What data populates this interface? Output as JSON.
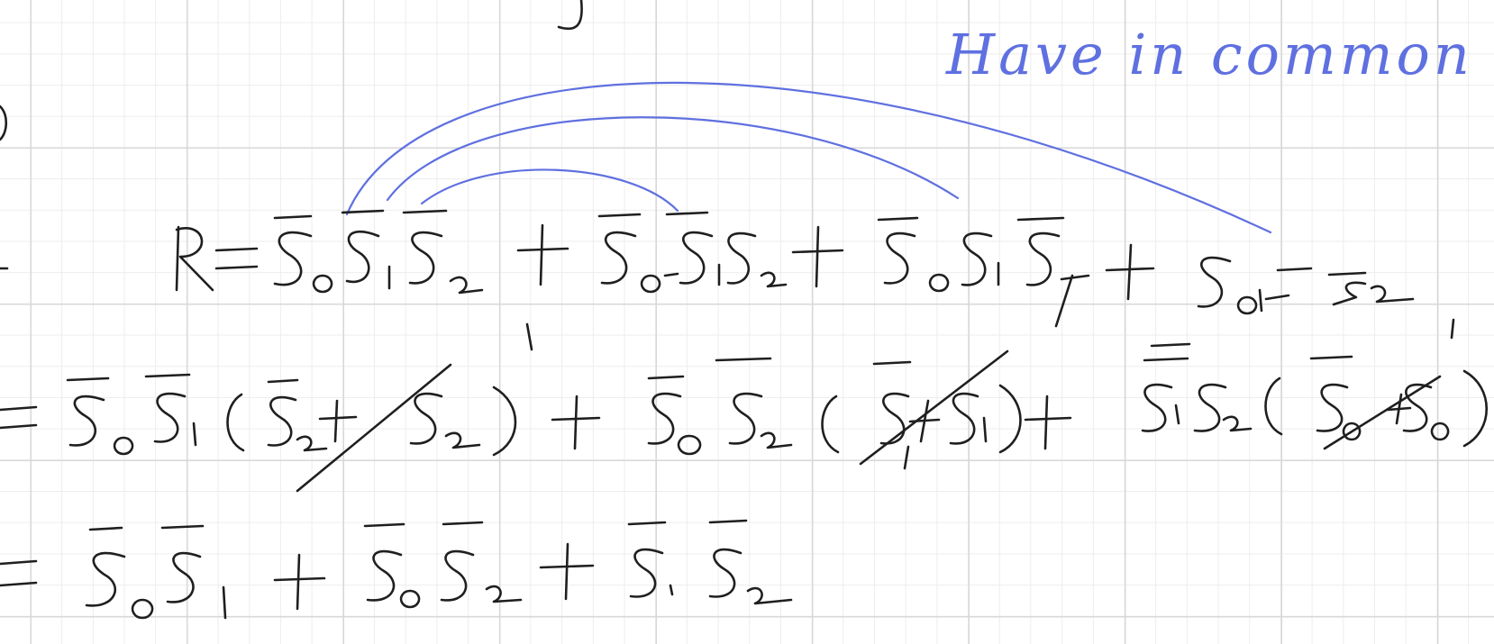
{
  "note": "Have in common",
  "equations": {
    "line1": "R = S̄₀S̄₁S̄₂ + S̄₀S̄₁S₂ + S̄₀S₁S̄₂ + S₀S̄₁S̄₂",
    "line2": "= S̄₀S̄₁(S̄₂ + S₂) + S̄₀S̄₂(S̄₁ + S₁) + S̄₁S̄₂(S̄₀ + S₀)",
    "line3": "= S̄₀S̄₁ + S̄₀S̄₂ + S̄₁S̄₂"
  },
  "colors": {
    "ink": "#1f1f1f",
    "annotation": "#5f70e0",
    "grid_major": "#d8d8d8",
    "grid_minor": "#ededed"
  }
}
